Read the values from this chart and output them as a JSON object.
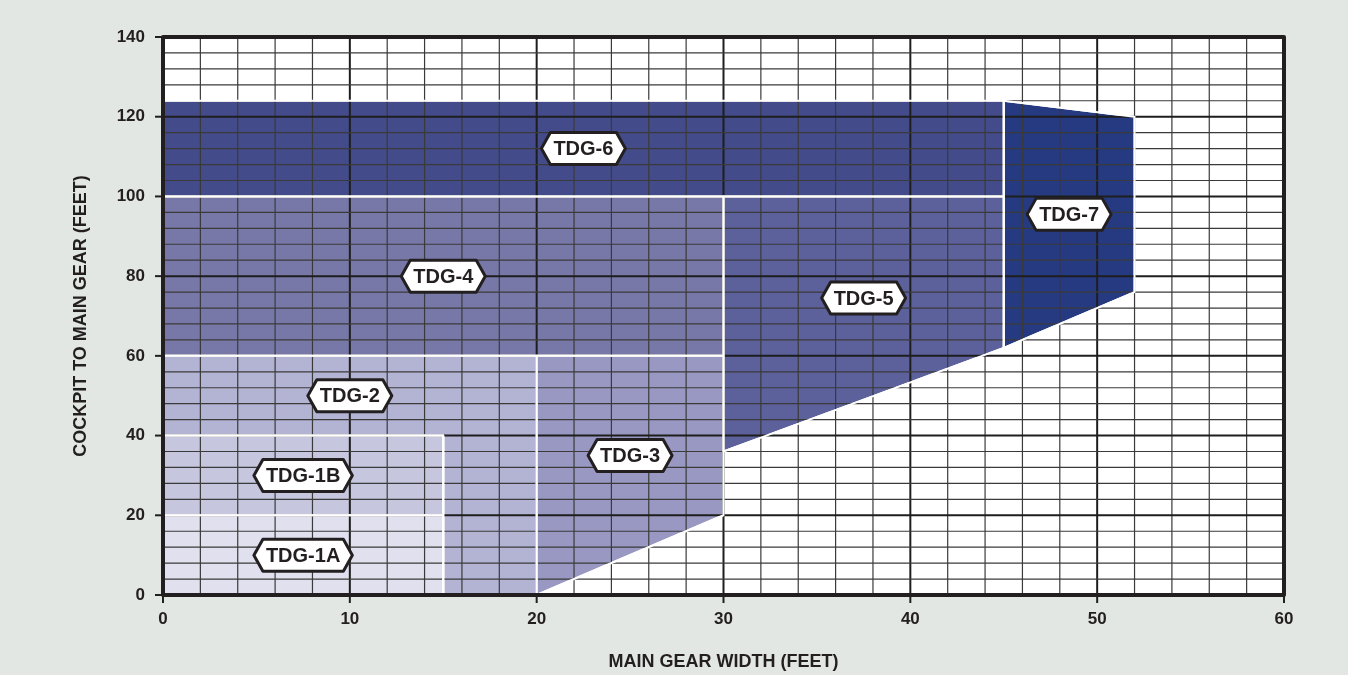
{
  "chart_data": {
    "type": "area",
    "xlabel": "MAIN GEAR WIDTH (FEET)",
    "ylabel": "COCKPIT TO MAIN GEAR (FEET)",
    "xlim": [
      0,
      60
    ],
    "ylim": [
      0,
      140
    ],
    "xticks": [
      0,
      {
        "value": 2,
        "label": null
      },
      {
        "value": 4,
        "label": null
      },
      {
        "value": 6,
        "label": null
      },
      {
        "value": 8,
        "label": null
      },
      10,
      {
        "value": 12,
        "label": null
      },
      {
        "value": 14,
        "label": null
      },
      {
        "value": 16,
        "label": null
      },
      {
        "value": 18,
        "label": null
      },
      20,
      {
        "value": 22,
        "label": null
      },
      {
        "value": 24,
        "label": null
      },
      {
        "value": 26,
        "label": null
      },
      {
        "value": 28,
        "label": null
      },
      30,
      {
        "value": 32,
        "label": null
      },
      {
        "value": 34,
        "label": null
      },
      {
        "value": 36,
        "label": null
      },
      {
        "value": 38,
        "label": null
      },
      40,
      {
        "value": 42,
        "label": null
      },
      {
        "value": 44,
        "label": null
      },
      {
        "value": 46,
        "label": null
      },
      {
        "value": 48,
        "label": null
      },
      50,
      {
        "value": 52,
        "label": null
      },
      {
        "value": 54,
        "label": null
      },
      {
        "value": 56,
        "label": null
      },
      {
        "value": 58,
        "label": null
      },
      60
    ],
    "yticks": [
      0,
      {
        "value": 4,
        "label": null
      },
      {
        "value": 8,
        "label": null
      },
      {
        "value": 12,
        "label": null
      },
      {
        "value": 16,
        "label": null
      },
      20,
      {
        "value": 24,
        "label": null
      },
      {
        "value": 28,
        "label": null
      },
      {
        "value": 32,
        "label": null
      },
      {
        "value": 36,
        "label": null
      },
      40,
      {
        "value": 44,
        "label": null
      },
      {
        "value": 48,
        "label": null
      },
      {
        "value": 52,
        "label": null
      },
      {
        "value": 56,
        "label": null
      },
      60,
      {
        "value": 64,
        "label": null
      },
      {
        "value": 68,
        "label": null
      },
      {
        "value": 72,
        "label": null
      },
      {
        "value": 76,
        "label": null
      },
      80,
      {
        "value": 84,
        "label": null
      },
      {
        "value": 88,
        "label": null
      },
      {
        "value": 92,
        "label": null
      },
      {
        "value": 96,
        "label": null
      },
      100,
      {
        "value": 104,
        "label": null
      },
      {
        "value": 108,
        "label": null
      },
      {
        "value": 112,
        "label": null
      },
      {
        "value": 116,
        "label": null
      },
      120,
      {
        "value": 124,
        "label": null
      },
      {
        "value": 128,
        "label": null
      },
      {
        "value": 132,
        "label": null
      },
      {
        "value": 136,
        "label": null
      },
      140
    ],
    "grid": true,
    "series": [
      {
        "name": "TDG-1A",
        "color": "#e0e0ee",
        "x": [
          0,
          15,
          15,
          0
        ],
        "values": [
          20,
          20,
          0,
          0
        ]
      },
      {
        "name": "TDG-1B",
        "color": "#c6c6df",
        "x": [
          0,
          15,
          15,
          0
        ],
        "values": [
          40,
          40,
          20,
          20
        ]
      },
      {
        "name": "TDG-2",
        "color": "#b3b3d3",
        "x": [
          0,
          20,
          20,
          15,
          15,
          0
        ],
        "values": [
          60,
          60,
          0,
          0,
          40,
          40
        ]
      },
      {
        "name": "TDG-3",
        "color": "#9898c2",
        "x": [
          20,
          30,
          30,
          20
        ],
        "values": [
          60,
          60,
          20,
          0
        ]
      },
      {
        "name": "TDG-4",
        "color": "#7878a8",
        "x": [
          0,
          30,
          30,
          0
        ],
        "values": [
          100,
          100,
          60,
          60
        ]
      },
      {
        "name": "TDG-5",
        "color": "#5c619b",
        "x": [
          30,
          45,
          45,
          30
        ],
        "values": [
          100,
          100,
          62,
          36
        ]
      },
      {
        "name": "TDG-6",
        "color": "#434b8a",
        "x": [
          0,
          45,
          45,
          0
        ],
        "values": [
          124,
          124,
          100,
          100
        ]
      },
      {
        "name": "TDG-7",
        "color": "#253a80",
        "x": [
          45,
          52,
          52,
          45
        ],
        "values": [
          124,
          120,
          76,
          62
        ]
      }
    ]
  }
}
